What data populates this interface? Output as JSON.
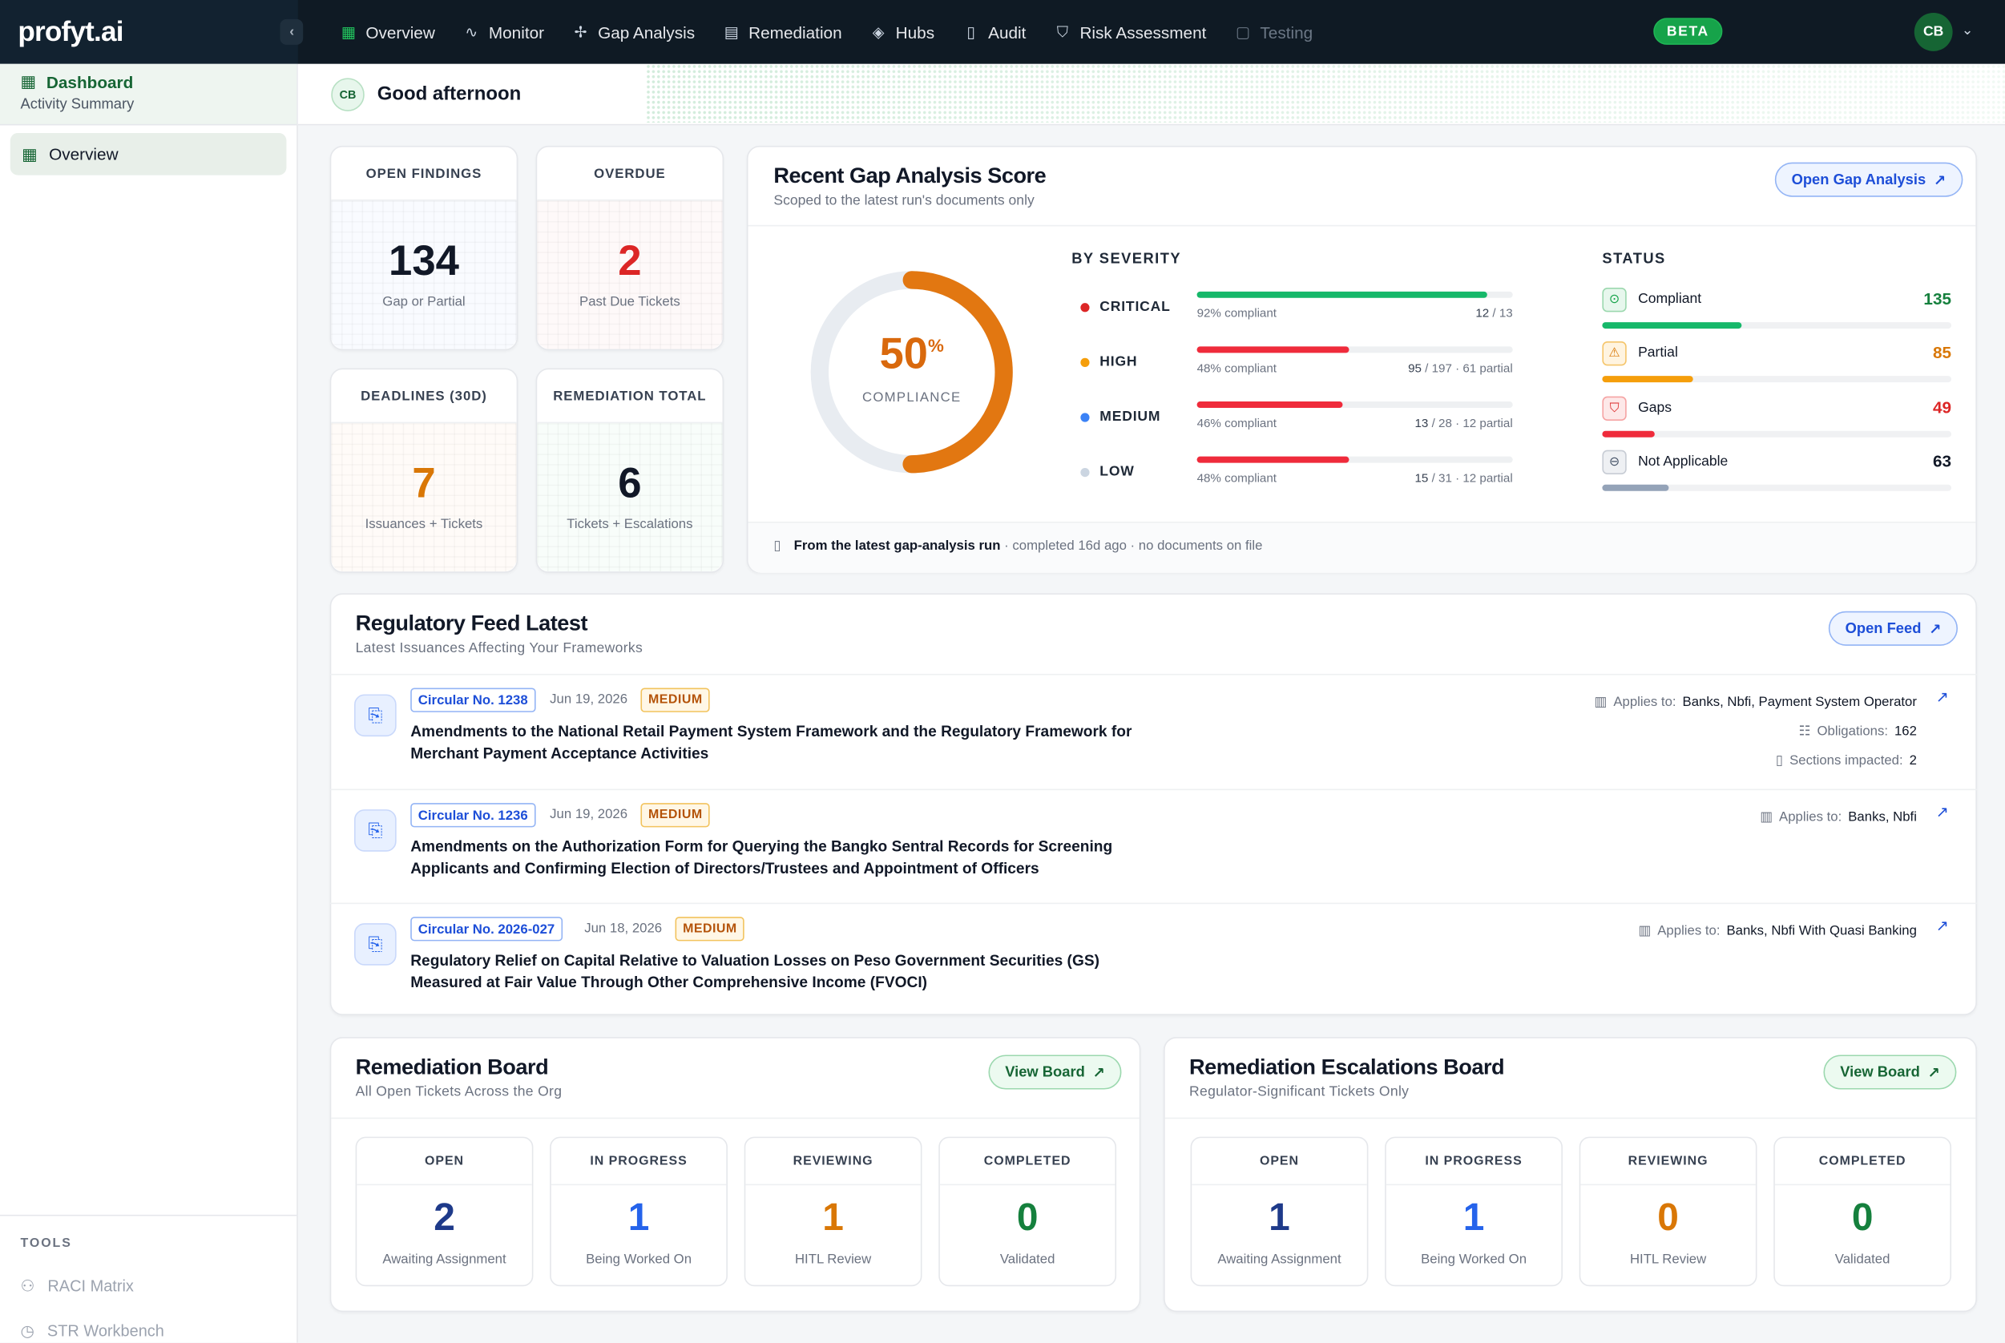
{
  "brand": {
    "logo": "profyt.ai",
    "beta": "BETA",
    "user_initials": "CB"
  },
  "nav": [
    {
      "label": "Overview",
      "icon": "grid-icon"
    },
    {
      "label": "Monitor",
      "icon": "pulse-icon"
    },
    {
      "label": "Gap Analysis",
      "icon": "sparkle-icon"
    },
    {
      "label": "Remediation",
      "icon": "board-icon"
    },
    {
      "label": "Hubs",
      "icon": "layers-icon"
    },
    {
      "label": "Audit",
      "icon": "file-icon"
    },
    {
      "label": "Risk Assessment",
      "icon": "shield-icon"
    },
    {
      "label": "Testing",
      "icon": "clipboard-icon"
    }
  ],
  "sidebar": {
    "title": "Dashboard",
    "subtitle": "Activity Summary",
    "items": [
      {
        "label": "Overview"
      }
    ],
    "tools_label": "TOOLS",
    "tools": [
      {
        "label": "RACI Matrix"
      },
      {
        "label": "STR Workbench"
      }
    ]
  },
  "greeting": {
    "initials": "CB",
    "text": "Good afternoon"
  },
  "kpis": {
    "open_findings": {
      "label": "OPEN FINDINGS",
      "value": "134",
      "sub": "Gap or Partial"
    },
    "overdue": {
      "label": "OVERDUE",
      "value": "2",
      "sub": "Past Due Tickets"
    },
    "deadlines": {
      "label": "DEADLINES (30D)",
      "value": "7",
      "sub": "Issuances + Tickets"
    },
    "remediation_total": {
      "label": "REMEDIATION TOTAL",
      "value": "6",
      "sub": "Tickets + Escalations"
    }
  },
  "gap": {
    "title": "Recent Gap Analysis Score",
    "subtitle": "Scoped to the latest run's documents only",
    "button": "Open Gap Analysis",
    "compliance_value": "50",
    "compliance_pct": 50,
    "compliance_unit": "%",
    "compliance_label": "COMPLIANCE",
    "severity_title": "BY SEVERITY",
    "severity": [
      {
        "label": "CRITICAL",
        "color": "#dc2626",
        "fill_pct": 92,
        "bar_color": "#16b86a",
        "left": "92% compliant",
        "right_a": "12",
        "right_b": " / 13"
      },
      {
        "label": "HIGH",
        "color": "#f59e0b",
        "fill_pct": 48,
        "bar_color": "#ef2b3b",
        "left": "48% compliant",
        "right_a": "95",
        "right_b": " / 197 · 61 partial"
      },
      {
        "label": "MEDIUM",
        "color": "#3b82f6",
        "fill_pct": 46,
        "bar_color": "#ef2b3b",
        "left": "46% compliant",
        "right_a": "13",
        "right_b": " / 28 · 12 partial"
      },
      {
        "label": "LOW",
        "color": "#cbd5e1",
        "fill_pct": 48,
        "bar_color": "#ef2b3b",
        "left": "48% compliant",
        "right_a": "15",
        "right_b": " / 31 · 12 partial"
      }
    ],
    "status_title": "STATUS",
    "status": [
      {
        "label": "Compliant",
        "value": "135",
        "color": "#15803d",
        "bar": "#16b86a",
        "fill_pct": 40,
        "icon": "check-circle-icon"
      },
      {
        "label": "Partial",
        "value": "85",
        "color": "#d97706",
        "bar": "#f59e0b",
        "fill_pct": 26,
        "icon": "warning-icon"
      },
      {
        "label": "Gaps",
        "value": "49",
        "color": "#dc2626",
        "bar": "#ef2b3b",
        "fill_pct": 15,
        "icon": "shield-alert-icon"
      },
      {
        "label": "Not Applicable",
        "value": "63",
        "color": "#111827",
        "bar": "#94a3b8",
        "fill_pct": 19,
        "icon": "minus-circle-icon"
      }
    ],
    "footer_bold": "From the latest gap-analysis run",
    "footer_rest": " · completed 16d ago · no documents on file"
  },
  "feed": {
    "title": "Regulatory Feed Latest",
    "subtitle": "Latest Issuances Affecting Your Frameworks",
    "button": "Open Feed",
    "items": [
      {
        "circular": "Circular No. 1238",
        "date": "Jun 19, 2026",
        "severity": "MEDIUM",
        "title": "Amendments to the National Retail Payment System Framework and the Regulatory Framework for Merchant Payment Acceptance Activities",
        "applies_label": "Applies to:",
        "applies": "Banks, Nbfi, Payment System Operator",
        "obligations_label": "Obligations:",
        "obligations": "162",
        "sections_label": "Sections impacted:",
        "sections": "2"
      },
      {
        "circular": "Circular No. 1236",
        "date": "Jun 19, 2026",
        "severity": "MEDIUM",
        "title": "Amendments on the Authorization Form for Querying the Bangko Sentral Records for Screening Applicants and Confirming Election of Directors/Trustees and Appointment of Officers",
        "applies_label": "Applies to:",
        "applies": "Banks, Nbfi"
      },
      {
        "circular": "Circular No. 2026-027",
        "date": "Jun 18, 2026",
        "severity": "MEDIUM",
        "title": "Regulatory Relief on Capital Relative to Valuation Losses on Peso Government Securities (GS) Measured at Fair Value Through Other Comprehensive Income (FVOCI)",
        "applies_label": "Applies to:",
        "applies": "Banks, Nbfi With Quasi Banking"
      }
    ]
  },
  "boards": [
    {
      "title": "Remediation Board",
      "subtitle": "All Open Tickets Across the Org",
      "button": "View Board",
      "cols": [
        {
          "label": "OPEN",
          "value": "2",
          "sub": "Awaiting Assignment",
          "color": "#1e3a8a"
        },
        {
          "label": "IN PROGRESS",
          "value": "1",
          "sub": "Being Worked On",
          "color": "#2563eb"
        },
        {
          "label": "REVIEWING",
          "value": "1",
          "sub": "HITL Review",
          "color": "#d97706"
        },
        {
          "label": "COMPLETED",
          "value": "0",
          "sub": "Validated",
          "color": "#15803d"
        }
      ]
    },
    {
      "title": "Remediation Escalations Board",
      "subtitle": "Regulator-Significant Tickets Only",
      "button": "View Board",
      "cols": [
        {
          "label": "OPEN",
          "value": "1",
          "sub": "Awaiting Assignment",
          "color": "#1e3a8a"
        },
        {
          "label": "IN PROGRESS",
          "value": "1",
          "sub": "Being Worked On",
          "color": "#2563eb"
        },
        {
          "label": "REVIEWING",
          "value": "0",
          "sub": "HITL Review",
          "color": "#d97706"
        },
        {
          "label": "COMPLETED",
          "value": "0",
          "sub": "Validated",
          "color": "#15803d"
        }
      ]
    }
  ]
}
